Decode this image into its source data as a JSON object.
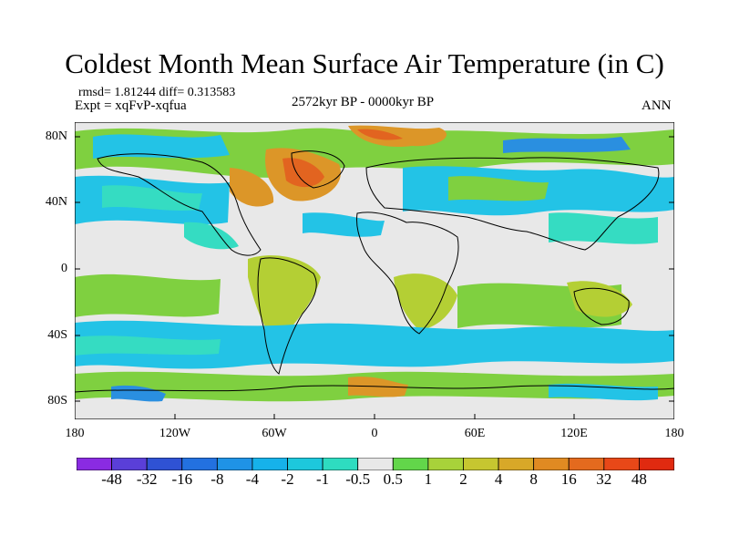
{
  "title": "Coldest Month Mean Surface Air Temperature (in C)",
  "stats_line": "rmsd= 1.81244  diff= 0.313583",
  "experiment": "Expt = xqFvP-xqfua",
  "period": "2572kyr BP - 0000kyr BP",
  "season": "ANN",
  "lat_labels": [
    "80N",
    "40N",
    "0",
    "40S",
    "80S"
  ],
  "lon_labels": [
    "180",
    "120W",
    "60W",
    "0",
    "60E",
    "120E",
    "180"
  ],
  "colorbar": {
    "labels": [
      "-48",
      "-32",
      "-16",
      "-8",
      "-4",
      "-2",
      "-1",
      "-0.5",
      "0.5",
      "1",
      "2",
      "4",
      "8",
      "16",
      "32",
      "48"
    ],
    "colors": [
      "#8a2be2",
      "#5a3fd8",
      "#2f52d4",
      "#2371e0",
      "#1f93e6",
      "#16b2ea",
      "#1dc8dc",
      "#2edcc0",
      "#e8e8e8",
      "#62d64a",
      "#a8d23a",
      "#c6c630",
      "#d8a828",
      "#e08a22",
      "#e46a1e",
      "#e84818",
      "#e02a10"
    ]
  },
  "map_colors": {
    "ocean_base": "#e8e8e8",
    "cyan": "#23c3e6",
    "teal": "#35dcc2",
    "green": "#7fd040",
    "yellow_green": "#b4cf34",
    "orange": "#dc9628",
    "red_orange": "#e26420",
    "blue": "#2a8fe0",
    "coast": "#000000"
  }
}
